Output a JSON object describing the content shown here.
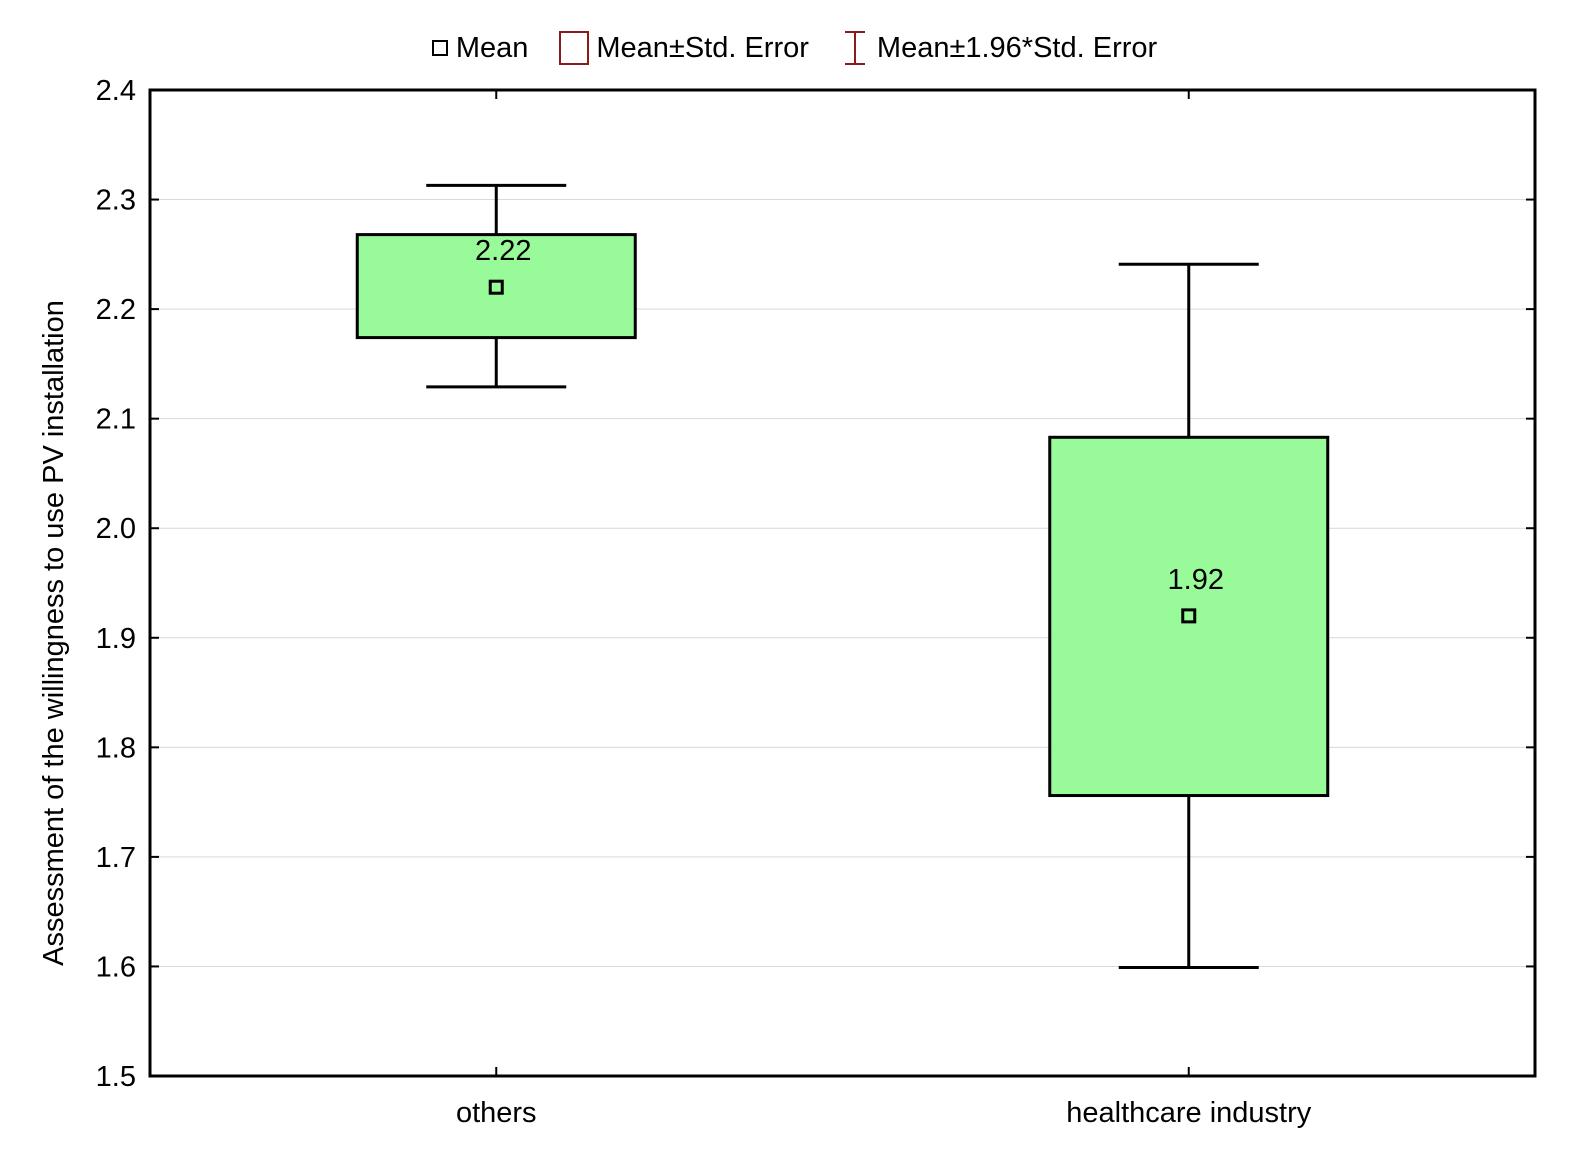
{
  "colors": {
    "box_fill": "#98fa98",
    "box_stroke": "#000000",
    "legend_error": "#8b1a1a",
    "grid": "#d9d9d9",
    "axis": "#000000"
  },
  "legend": {
    "mean": "Mean",
    "se": "Mean±Std. Error",
    "ci": "Mean±1.96*Std. Error"
  },
  "chart_data": {
    "type": "box",
    "title": "",
    "xlabel": "",
    "ylabel": "Assessment of the willingness to use PV installation",
    "ylim": [
      1.5,
      2.4
    ],
    "yticks": [
      "1.5",
      "1.6",
      "1.7",
      "1.8",
      "1.9",
      "2.0",
      "2.1",
      "2.2",
      "2.3",
      "2.4"
    ],
    "grid": true,
    "legend_position": "top",
    "categories": [
      "others",
      "healthcare industry"
    ],
    "series": [
      {
        "category": "others",
        "mean": 2.22,
        "mean_label": "2.22",
        "se_low": 2.174,
        "se_high": 2.268,
        "ci_low": 2.129,
        "ci_high": 2.313
      },
      {
        "category": "healthcare industry",
        "mean": 1.92,
        "mean_label": "1.92",
        "se_low": 1.756,
        "se_high": 2.083,
        "ci_low": 1.599,
        "ci_high": 2.241
      }
    ]
  }
}
